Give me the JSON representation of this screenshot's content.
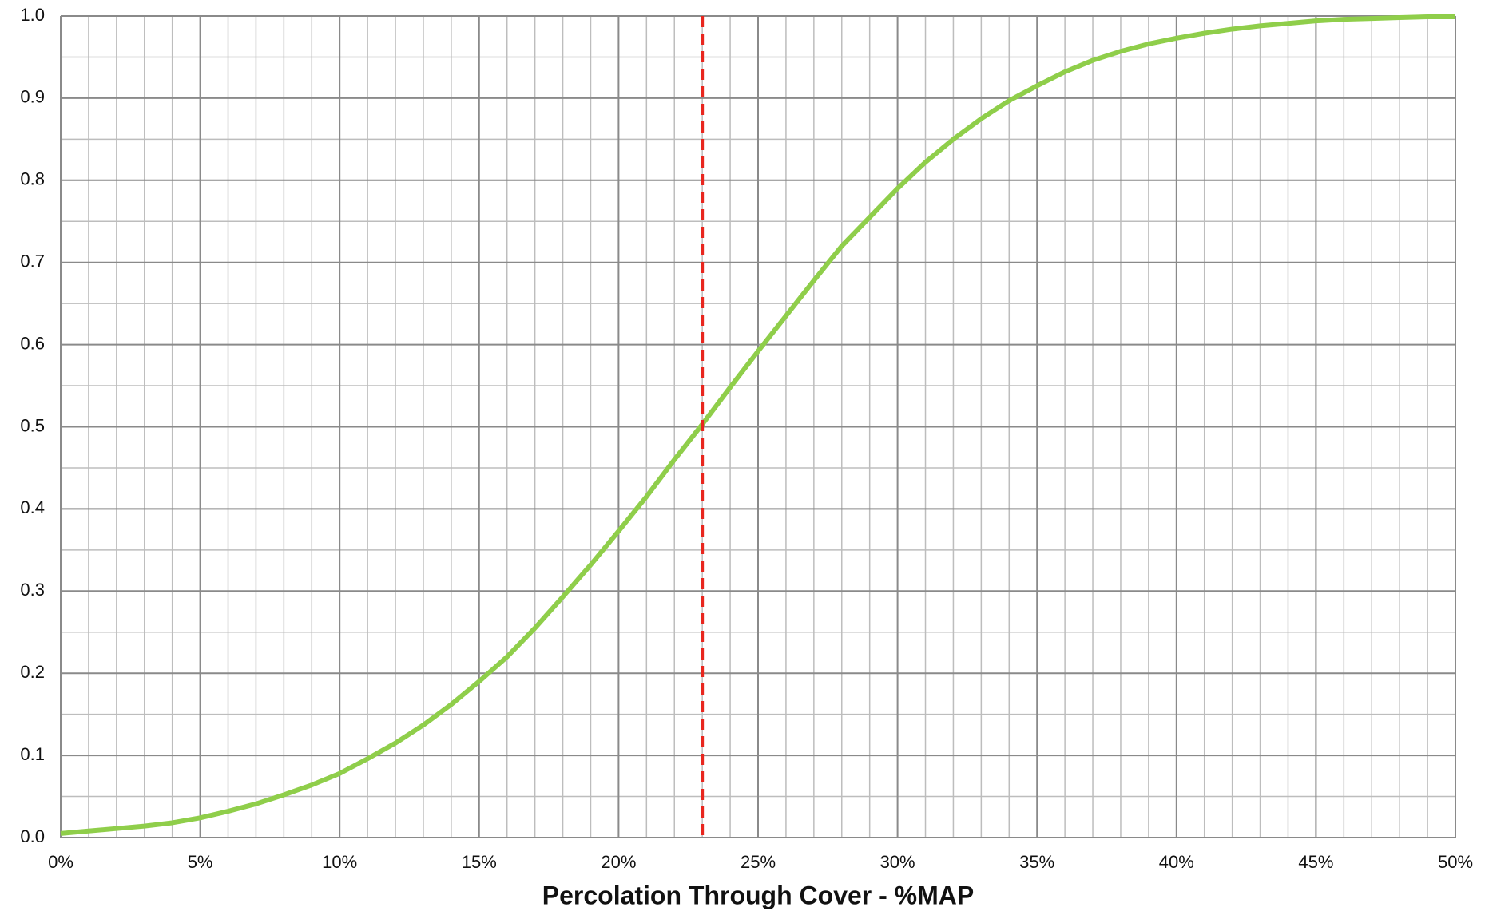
{
  "chart_data": {
    "type": "line",
    "x_label": "Percolation Through Cover - %MAP",
    "x": [
      0,
      1,
      2,
      3,
      4,
      5,
      6,
      7,
      8,
      9,
      10,
      11,
      12,
      13,
      14,
      15,
      16,
      17,
      18,
      19,
      20,
      21,
      22,
      23,
      24,
      25,
      26,
      27,
      28,
      29,
      30,
      31,
      32,
      33,
      34,
      35,
      36,
      37,
      38,
      39,
      40,
      41,
      42,
      43,
      44,
      45,
      46,
      47,
      48,
      49,
      50
    ],
    "values": [
      0.005,
      0.008,
      0.011,
      0.014,
      0.018,
      0.024,
      0.032,
      0.041,
      0.052,
      0.064,
      0.078,
      0.096,
      0.115,
      0.137,
      0.162,
      0.19,
      0.22,
      0.255,
      0.293,
      0.332,
      0.373,
      0.415,
      0.46,
      0.503,
      0.548,
      0.592,
      0.635,
      0.678,
      0.72,
      0.755,
      0.79,
      0.822,
      0.85,
      0.875,
      0.897,
      0.915,
      0.932,
      0.946,
      0.957,
      0.966,
      0.973,
      0.979,
      0.984,
      0.988,
      0.991,
      0.994,
      0.996,
      0.997,
      0.998,
      0.999,
      0.999
    ],
    "color": "#8fce4a",
    "vline": {
      "x": 23,
      "color": "#e8261e"
    },
    "xlim": [
      0,
      50
    ],
    "xticks": [
      {
        "value": 0,
        "label": "0%"
      },
      {
        "value": 5,
        "label": "5%"
      },
      {
        "value": 10,
        "label": "10%"
      },
      {
        "value": 15,
        "label": "15%"
      },
      {
        "value": 20,
        "label": "20%"
      },
      {
        "value": 25,
        "label": "25%"
      },
      {
        "value": 30,
        "label": "30%"
      },
      {
        "value": 35,
        "label": "35%"
      },
      {
        "value": 40,
        "label": "40%"
      },
      {
        "value": 45,
        "label": "45%"
      },
      {
        "value": 50,
        "label": "50%"
      }
    ],
    "ylim": [
      0,
      1
    ],
    "yticks": [
      {
        "value": 0,
        "label": "0.0"
      },
      {
        "value": 0.1,
        "label": "0.1"
      },
      {
        "value": 0.2,
        "label": "0.2"
      },
      {
        "value": 0.3,
        "label": "0.3"
      },
      {
        "value": 0.4,
        "label": "0.4"
      },
      {
        "value": 0.5,
        "label": "0.5"
      },
      {
        "value": 0.6,
        "label": "0.6"
      },
      {
        "value": 0.7,
        "label": "0.7"
      },
      {
        "value": 0.8,
        "label": "0.8"
      },
      {
        "value": 0.9,
        "label": "0.9"
      },
      {
        "value": 1,
        "label": "1.0"
      }
    ],
    "grid": true,
    "minor_grid": true
  }
}
